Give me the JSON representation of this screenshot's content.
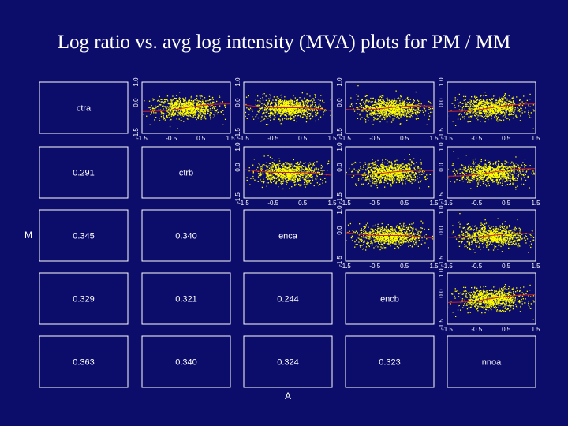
{
  "title": "Log ratio vs. avg log intensity (MVA) plots for PM / MM",
  "colors": {
    "background": "#0c0c6b",
    "panel_border": "#ffffff",
    "points": "#ffff00",
    "fit_line": "#cc2222"
  },
  "chart_data": {
    "type": "scatter",
    "layout": "pairs-matrix",
    "variables": [
      "ctra",
      "ctrb",
      "enca",
      "encb",
      "nnoa"
    ],
    "xlabel": "A",
    "ylabel": "M",
    "correlations": [
      {
        "row": 2,
        "col": 1,
        "value": "0.291"
      },
      {
        "row": 3,
        "col": 1,
        "value": "0.345"
      },
      {
        "row": 3,
        "col": 2,
        "value": "0.340"
      },
      {
        "row": 4,
        "col": 1,
        "value": "0.329"
      },
      {
        "row": 4,
        "col": 2,
        "value": "0.321"
      },
      {
        "row": 4,
        "col": 3,
        "value": "0.244"
      },
      {
        "row": 5,
        "col": 1,
        "value": "0.363"
      },
      {
        "row": 5,
        "col": 2,
        "value": "0.340"
      },
      {
        "row": 5,
        "col": 3,
        "value": "0.324"
      },
      {
        "row": 5,
        "col": 4,
        "value": "0.323"
      }
    ],
    "scatter_panels": [
      {
        "row": 1,
        "col": 2,
        "x_ticks": [
          "-1.5",
          "-0.5",
          "0.5",
          "1.5"
        ],
        "y_ticks": [
          "-1.5",
          "0.0",
          "1.0"
        ]
      },
      {
        "row": 1,
        "col": 3,
        "x_ticks": [
          "-1.5",
          "-0.5",
          "0.5",
          "1.5"
        ],
        "y_ticks": [
          "-1.5",
          "0.0",
          "1.0"
        ]
      },
      {
        "row": 1,
        "col": 4,
        "x_ticks": [
          "-1.5",
          "-0.5",
          "0.5",
          "1.5"
        ],
        "y_ticks": [
          "-1.5",
          "0.0",
          "1.0"
        ]
      },
      {
        "row": 1,
        "col": 5,
        "x_ticks": [
          "-1.5",
          "-0.5",
          "0.5",
          "1.5"
        ],
        "y_ticks": [
          "-1.5",
          "0.0",
          "1.0"
        ]
      },
      {
        "row": 2,
        "col": 3,
        "x_ticks": [
          "-1.5",
          "-0.5",
          "0.5",
          "1.5"
        ],
        "y_ticks": [
          "-1.5",
          "0.0",
          "1.0"
        ]
      },
      {
        "row": 2,
        "col": 4,
        "x_ticks": [
          "-1.5",
          "-0.5",
          "0.5",
          "1.5"
        ],
        "y_ticks": [
          "-1.5",
          "0.0",
          "1.0"
        ]
      },
      {
        "row": 2,
        "col": 5,
        "x_ticks": [
          "-1.5",
          "-0.5",
          "0.5",
          "1.5"
        ],
        "y_ticks": [
          "-1.5",
          "0.0",
          "1.0"
        ]
      },
      {
        "row": 3,
        "col": 4,
        "x_ticks": [
          "-1.5",
          "-0.5",
          "0.5",
          "1.5"
        ],
        "y_ticks": [
          "-1.5",
          "0.0",
          "1.0"
        ]
      },
      {
        "row": 3,
        "col": 5,
        "x_ticks": [
          "-1.5",
          "-0.5",
          "0.5",
          "1.5"
        ],
        "y_ticks": [
          "-1.5",
          "0.0",
          "1.0"
        ]
      },
      {
        "row": 4,
        "col": 5,
        "x_ticks": [
          "-1.5",
          "-0.5",
          "0.5",
          "1.5"
        ],
        "y_ticks": [
          "-1.5",
          "0.0",
          "1.0"
        ]
      }
    ],
    "x_range": [
      -1.5,
      1.5
    ],
    "y_range": [
      -1.5,
      1.0
    ]
  }
}
